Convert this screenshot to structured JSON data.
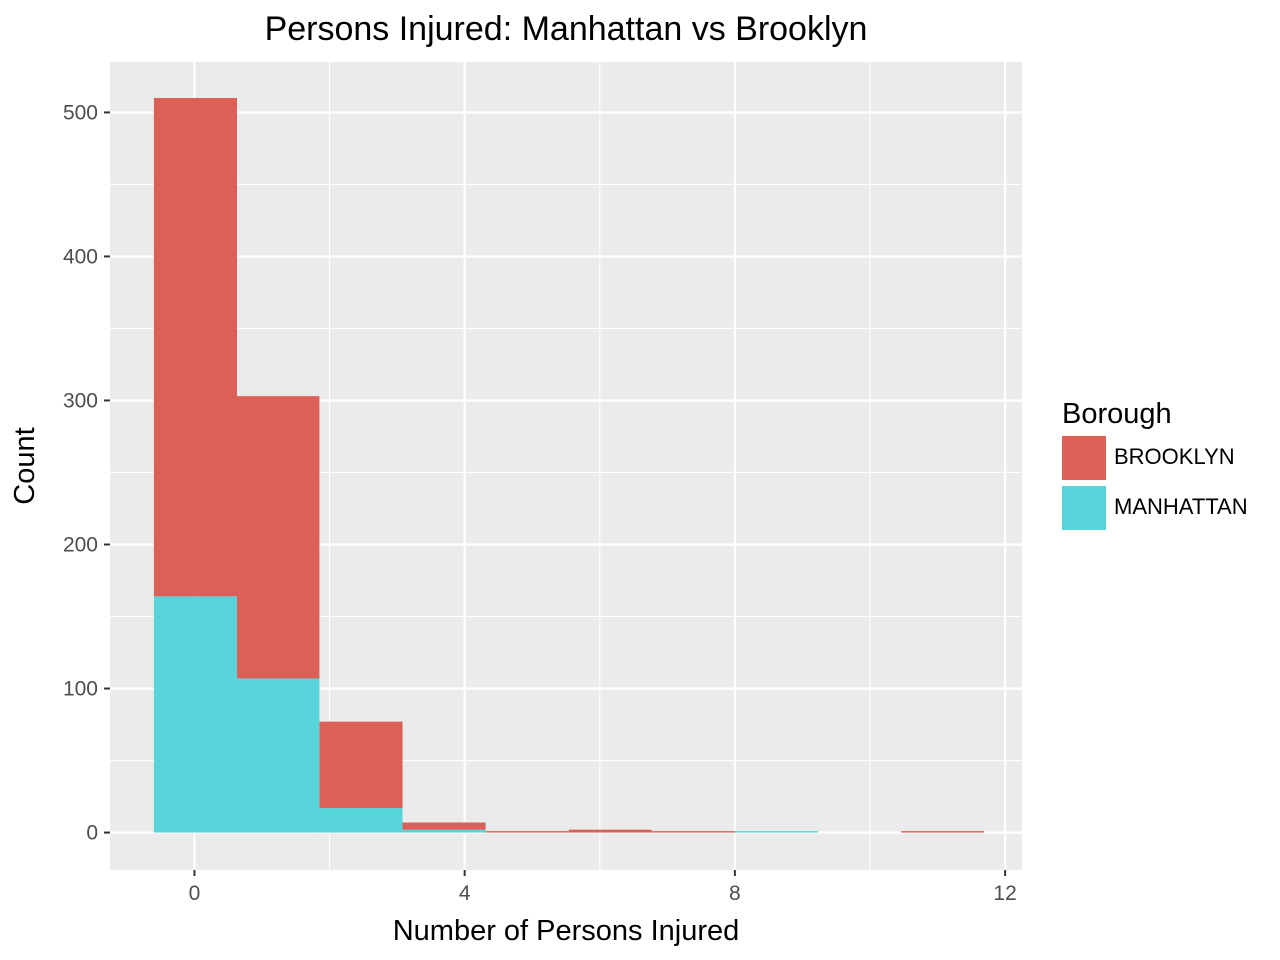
{
  "chart_data": {
    "type": "bar",
    "subtype": "stacked histogram",
    "title": "Persons Injured: Manhattan vs Brooklyn",
    "xlabel": "Number of Persons Injured",
    "ylabel": "Count",
    "xlim": [
      -1.25,
      12.25
    ],
    "ylim": [
      -26,
      535
    ],
    "x_ticks": [
      0,
      4,
      8,
      12
    ],
    "y_ticks": [
      0,
      100,
      200,
      300,
      400,
      500
    ],
    "grid": true,
    "legend": {
      "title": "Borough",
      "position": "right"
    },
    "bins": [
      [
        -0.6,
        0.63
      ],
      [
        0.63,
        1.85
      ],
      [
        1.85,
        3.08
      ],
      [
        3.08,
        4.31
      ],
      [
        4.31,
        5.54
      ],
      [
        5.54,
        6.77
      ],
      [
        6.77,
        8.0
      ],
      [
        8.0,
        9.23
      ],
      [
        9.23,
        10.46
      ],
      [
        10.46,
        11.69
      ]
    ],
    "series": [
      {
        "name": "MANHATTAN",
        "color": "#58D4DB",
        "values": [
          164,
          107,
          17,
          2,
          0,
          0,
          0,
          1,
          0,
          0
        ]
      },
      {
        "name": "BROOKLYN",
        "color": "#DC6058",
        "values": [
          346,
          196,
          60,
          5,
          1,
          2,
          1,
          0,
          0,
          1
        ]
      }
    ]
  }
}
